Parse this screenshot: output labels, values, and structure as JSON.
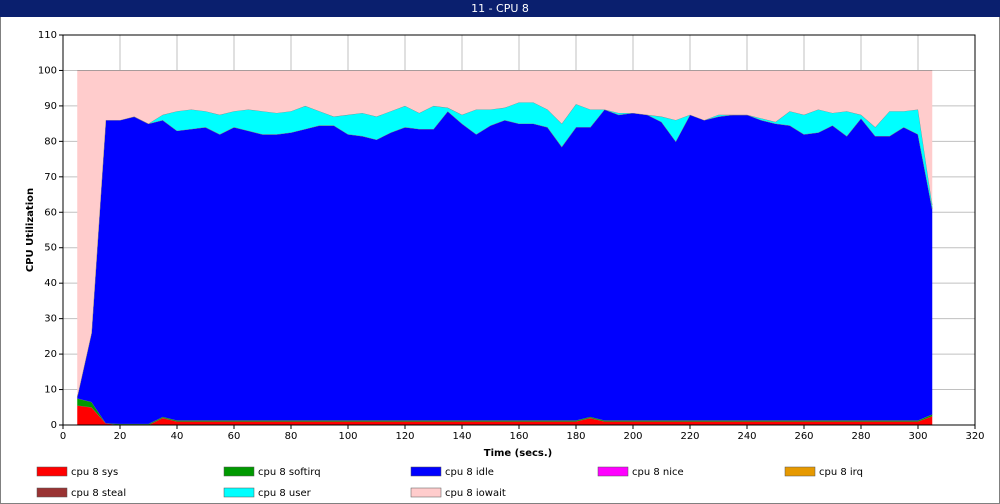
{
  "window_title": "11 - CPU 8",
  "chart_data": {
    "type": "stacked_area",
    "x_label": "Time (secs.)",
    "y_label": "CPU Utilization",
    "x": [
      5,
      10,
      15,
      20,
      25,
      30,
      35,
      40,
      45,
      50,
      55,
      60,
      65,
      70,
      75,
      80,
      85,
      90,
      95,
      100,
      105,
      110,
      115,
      120,
      125,
      130,
      135,
      140,
      145,
      150,
      155,
      160,
      165,
      170,
      175,
      180,
      185,
      190,
      195,
      200,
      205,
      210,
      215,
      220,
      225,
      230,
      235,
      240,
      245,
      250,
      255,
      260,
      265,
      270,
      275,
      280,
      285,
      290,
      295,
      300,
      305
    ],
    "xlim": [
      0,
      320
    ],
    "xticks": [
      0,
      20,
      40,
      60,
      80,
      100,
      120,
      140,
      160,
      180,
      200,
      220,
      240,
      260,
      280,
      300,
      320
    ],
    "ylim": [
      0,
      110
    ],
    "yticks": [
      0,
      10,
      20,
      30,
      40,
      50,
      60,
      70,
      80,
      90,
      100,
      110
    ],
    "grid": true,
    "series": [
      {
        "name": "cpu 8 sys",
        "color": "#ff0000",
        "values": [
          5.5,
          5,
          0.5,
          0,
          0,
          0,
          2,
          1,
          1,
          1,
          1,
          1,
          1,
          1,
          1,
          1,
          1,
          1,
          1,
          1,
          1,
          1,
          1,
          1,
          1,
          1,
          1,
          1,
          1,
          1,
          1,
          1,
          1,
          1,
          1,
          1,
          2,
          1,
          1,
          1,
          1,
          1,
          1,
          1,
          1,
          1,
          1,
          1,
          1,
          1,
          1,
          1,
          1,
          1,
          1,
          1,
          1,
          1,
          1,
          1,
          2.5
        ]
      },
      {
        "name": "cpu 8 softirq",
        "color": "#009900",
        "values": [
          2,
          1.5,
          0,
          0.3,
          0.3,
          0.3,
          0.3,
          0.3,
          0.3,
          0.3,
          0.3,
          0.3,
          0.3,
          0.3,
          0.3,
          0.3,
          0.3,
          0.3,
          0.3,
          0.3,
          0.3,
          0.3,
          0.3,
          0.3,
          0.3,
          0.3,
          0.3,
          0.3,
          0.3,
          0.3,
          0.3,
          0.3,
          0.3,
          0.3,
          0.3,
          0.3,
          0.3,
          0.3,
          0.3,
          0.3,
          0.3,
          0.3,
          0.3,
          0.3,
          0.3,
          0.3,
          0.3,
          0.3,
          0.3,
          0.3,
          0.3,
          0.3,
          0.3,
          0.3,
          0.3,
          0.3,
          0.3,
          0.3,
          0.3,
          0.3,
          0.5
        ]
      },
      {
        "name": "cpu 8 idle",
        "color": "#0000ff",
        "values": [
          0.5,
          19.5,
          85.5,
          85.7,
          86.7,
          84.7,
          83.7,
          81.7,
          82.2,
          82.7,
          80.7,
          82.7,
          81.7,
          80.7,
          80.7,
          81.2,
          82.2,
          83.2,
          83.2,
          80.7,
          80.2,
          79.2,
          81.2,
          82.7,
          82.2,
          82.2,
          87.2,
          83.7,
          80.7,
          83.2,
          84.7,
          83.7,
          83.7,
          82.7,
          77.2,
          82.7,
          81.7,
          87.7,
          86.2,
          86.7,
          86.2,
          84.2,
          78.7,
          86.2,
          84.7,
          85.7,
          86.2,
          86.2,
          84.7,
          83.7,
          83.2,
          80.7,
          81.2,
          83.2,
          80.2,
          85.2,
          80.2,
          80.2,
          82.7,
          80.7,
          58
        ]
      },
      {
        "name": "cpu 8 nice",
        "color": "#ff00ff",
        "values": [
          0,
          0,
          0,
          0,
          0,
          0,
          0,
          0,
          0,
          0,
          0,
          0,
          0,
          0,
          0,
          0,
          0,
          0,
          0,
          0,
          0,
          0,
          0,
          0,
          0,
          0,
          0,
          0,
          0,
          0,
          0,
          0,
          0,
          0,
          0,
          0,
          0,
          0,
          0,
          0,
          0,
          0,
          0,
          0,
          0,
          0,
          0,
          0,
          0,
          0,
          0,
          0,
          0,
          0,
          0,
          0,
          0,
          0,
          0,
          0,
          0
        ]
      },
      {
        "name": "cpu 8 irq",
        "color": "#e69900",
        "values": [
          0,
          0,
          0,
          0,
          0,
          0,
          0,
          0,
          0,
          0,
          0,
          0,
          0,
          0,
          0,
          0,
          0,
          0,
          0,
          0,
          0,
          0,
          0,
          0,
          0,
          0,
          0,
          0,
          0,
          0,
          0,
          0,
          0,
          0,
          0,
          0,
          0,
          0,
          0,
          0,
          0,
          0,
          0,
          0,
          0,
          0,
          0,
          0,
          0,
          0,
          0,
          0,
          0,
          0,
          0,
          0,
          0,
          0,
          0,
          0,
          0
        ]
      },
      {
        "name": "cpu 8 steal",
        "color": "#993333",
        "values": [
          0,
          0,
          0,
          0,
          0,
          0,
          0,
          0,
          0,
          0,
          0,
          0,
          0,
          0,
          0,
          0,
          0,
          0,
          0,
          0,
          0,
          0,
          0,
          0,
          0,
          0,
          0,
          0,
          0,
          0,
          0,
          0,
          0,
          0,
          0,
          0,
          0,
          0,
          0,
          0,
          0,
          0,
          0,
          0,
          0,
          0,
          0,
          0,
          0,
          0,
          0,
          0,
          0,
          0,
          0,
          0,
          0,
          0,
          0,
          0,
          0
        ]
      },
      {
        "name": "cpu 8 user",
        "color": "#00ffff",
        "values": [
          0,
          0,
          0,
          0,
          0,
          0,
          1.5,
          5.5,
          5.5,
          4.5,
          5.5,
          4.5,
          6,
          6.5,
          6,
          6,
          6.5,
          4,
          2.5,
          5.5,
          6.5,
          6.5,
          6,
          6,
          4.5,
          6.5,
          1,
          2.5,
          7,
          4.5,
          3.5,
          6,
          6,
          5,
          6.5,
          6.5,
          5,
          0,
          0.5,
          0,
          0,
          1.5,
          6,
          0,
          0,
          0.5,
          0,
          0,
          0.5,
          0.5,
          4,
          5.5,
          6.5,
          3.5,
          7,
          1,
          2.5,
          7,
          4.5,
          7,
          1
        ]
      },
      {
        "name": "cpu 8 iowait",
        "color": "#ffcccc",
        "values": [
          92,
          74,
          14,
          14,
          13,
          15,
          12.5,
          11.5,
          11,
          11.5,
          12.5,
          11.5,
          11,
          11.5,
          12,
          11.5,
          10,
          11.5,
          13,
          12.5,
          12,
          13,
          11.5,
          10,
          12,
          10,
          10.5,
          12.5,
          11,
          11,
          10.5,
          9,
          9,
          11,
          15,
          9.5,
          11,
          11,
          12,
          12,
          12.5,
          13,
          14,
          12.5,
          14,
          12.5,
          12.5,
          12.5,
          13.5,
          14.5,
          11.5,
          12.5,
          11,
          12,
          11.5,
          12.5,
          16,
          11.5,
          11.5,
          11,
          38
        ]
      }
    ]
  }
}
